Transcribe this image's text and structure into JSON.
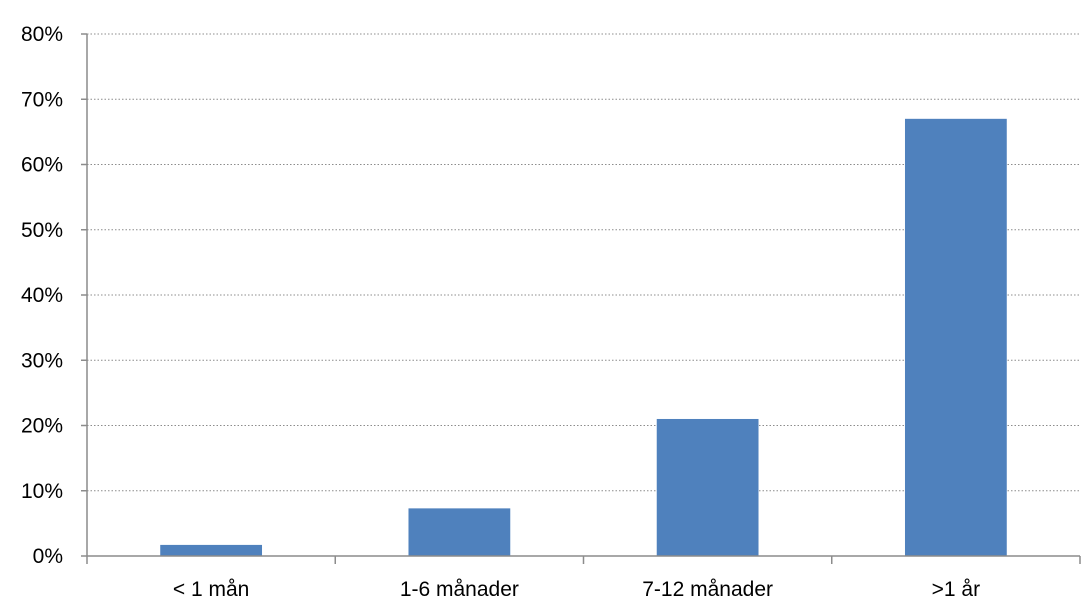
{
  "chart_data": {
    "type": "bar",
    "categories": [
      "< 1 mån",
      "1-6 månader",
      "7-12 månader",
      ">1 år"
    ],
    "values": [
      1.7,
      7.3,
      21.0,
      67.0
    ],
    "value_unit": "%",
    "ylim": [
      0,
      80
    ],
    "y_ticks": [
      0,
      10,
      20,
      30,
      40,
      50,
      60,
      70,
      80
    ],
    "y_tick_labels": [
      "0%",
      "10%",
      "20%",
      "30%",
      "40%",
      "50%",
      "60%",
      "70%",
      "80%"
    ],
    "title": "",
    "xlabel": "",
    "ylabel": "",
    "grid": "horizontal-dotted",
    "legend": "none",
    "colors": {
      "bar": "#4f81bd",
      "grid": "#8c8c8c",
      "axis": "#8c8c8c"
    }
  }
}
